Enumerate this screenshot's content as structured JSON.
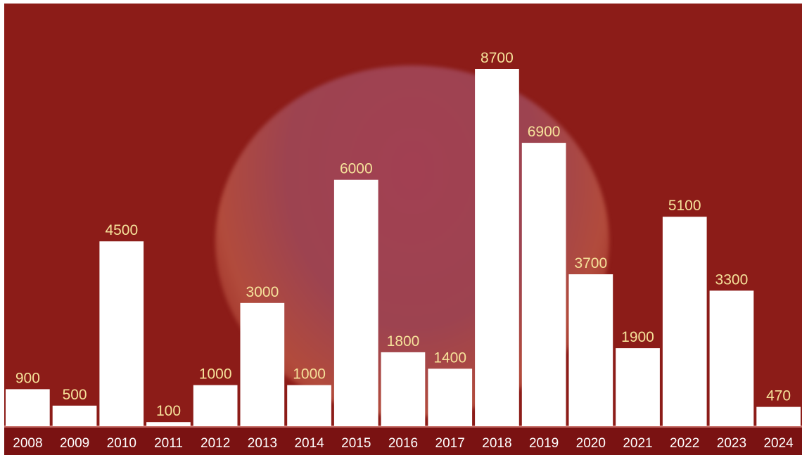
{
  "chart_data": {
    "type": "bar",
    "title": "",
    "xlabel": "",
    "ylabel": "",
    "categories": [
      "2008",
      "2009",
      "2010",
      "2011",
      "2012",
      "2013",
      "2014",
      "2015",
      "2016",
      "2017",
      "2018",
      "2019",
      "2020",
      "2021",
      "2022",
      "2023",
      "2024"
    ],
    "values": [
      900,
      500,
      4500,
      100,
      1000,
      3000,
      1000,
      6000,
      1800,
      1400,
      8700,
      6900,
      3700,
      1900,
      5100,
      3300,
      470
    ],
    "ylim": [
      0,
      8700
    ],
    "grid": false,
    "legend": "none",
    "data_labels": true
  },
  "colors": {
    "background": "#8c1c18",
    "bars": "#ffffff",
    "value_labels": "#f6e29a",
    "axis_band": "#7a1212",
    "year_labels": "#ffffff"
  }
}
